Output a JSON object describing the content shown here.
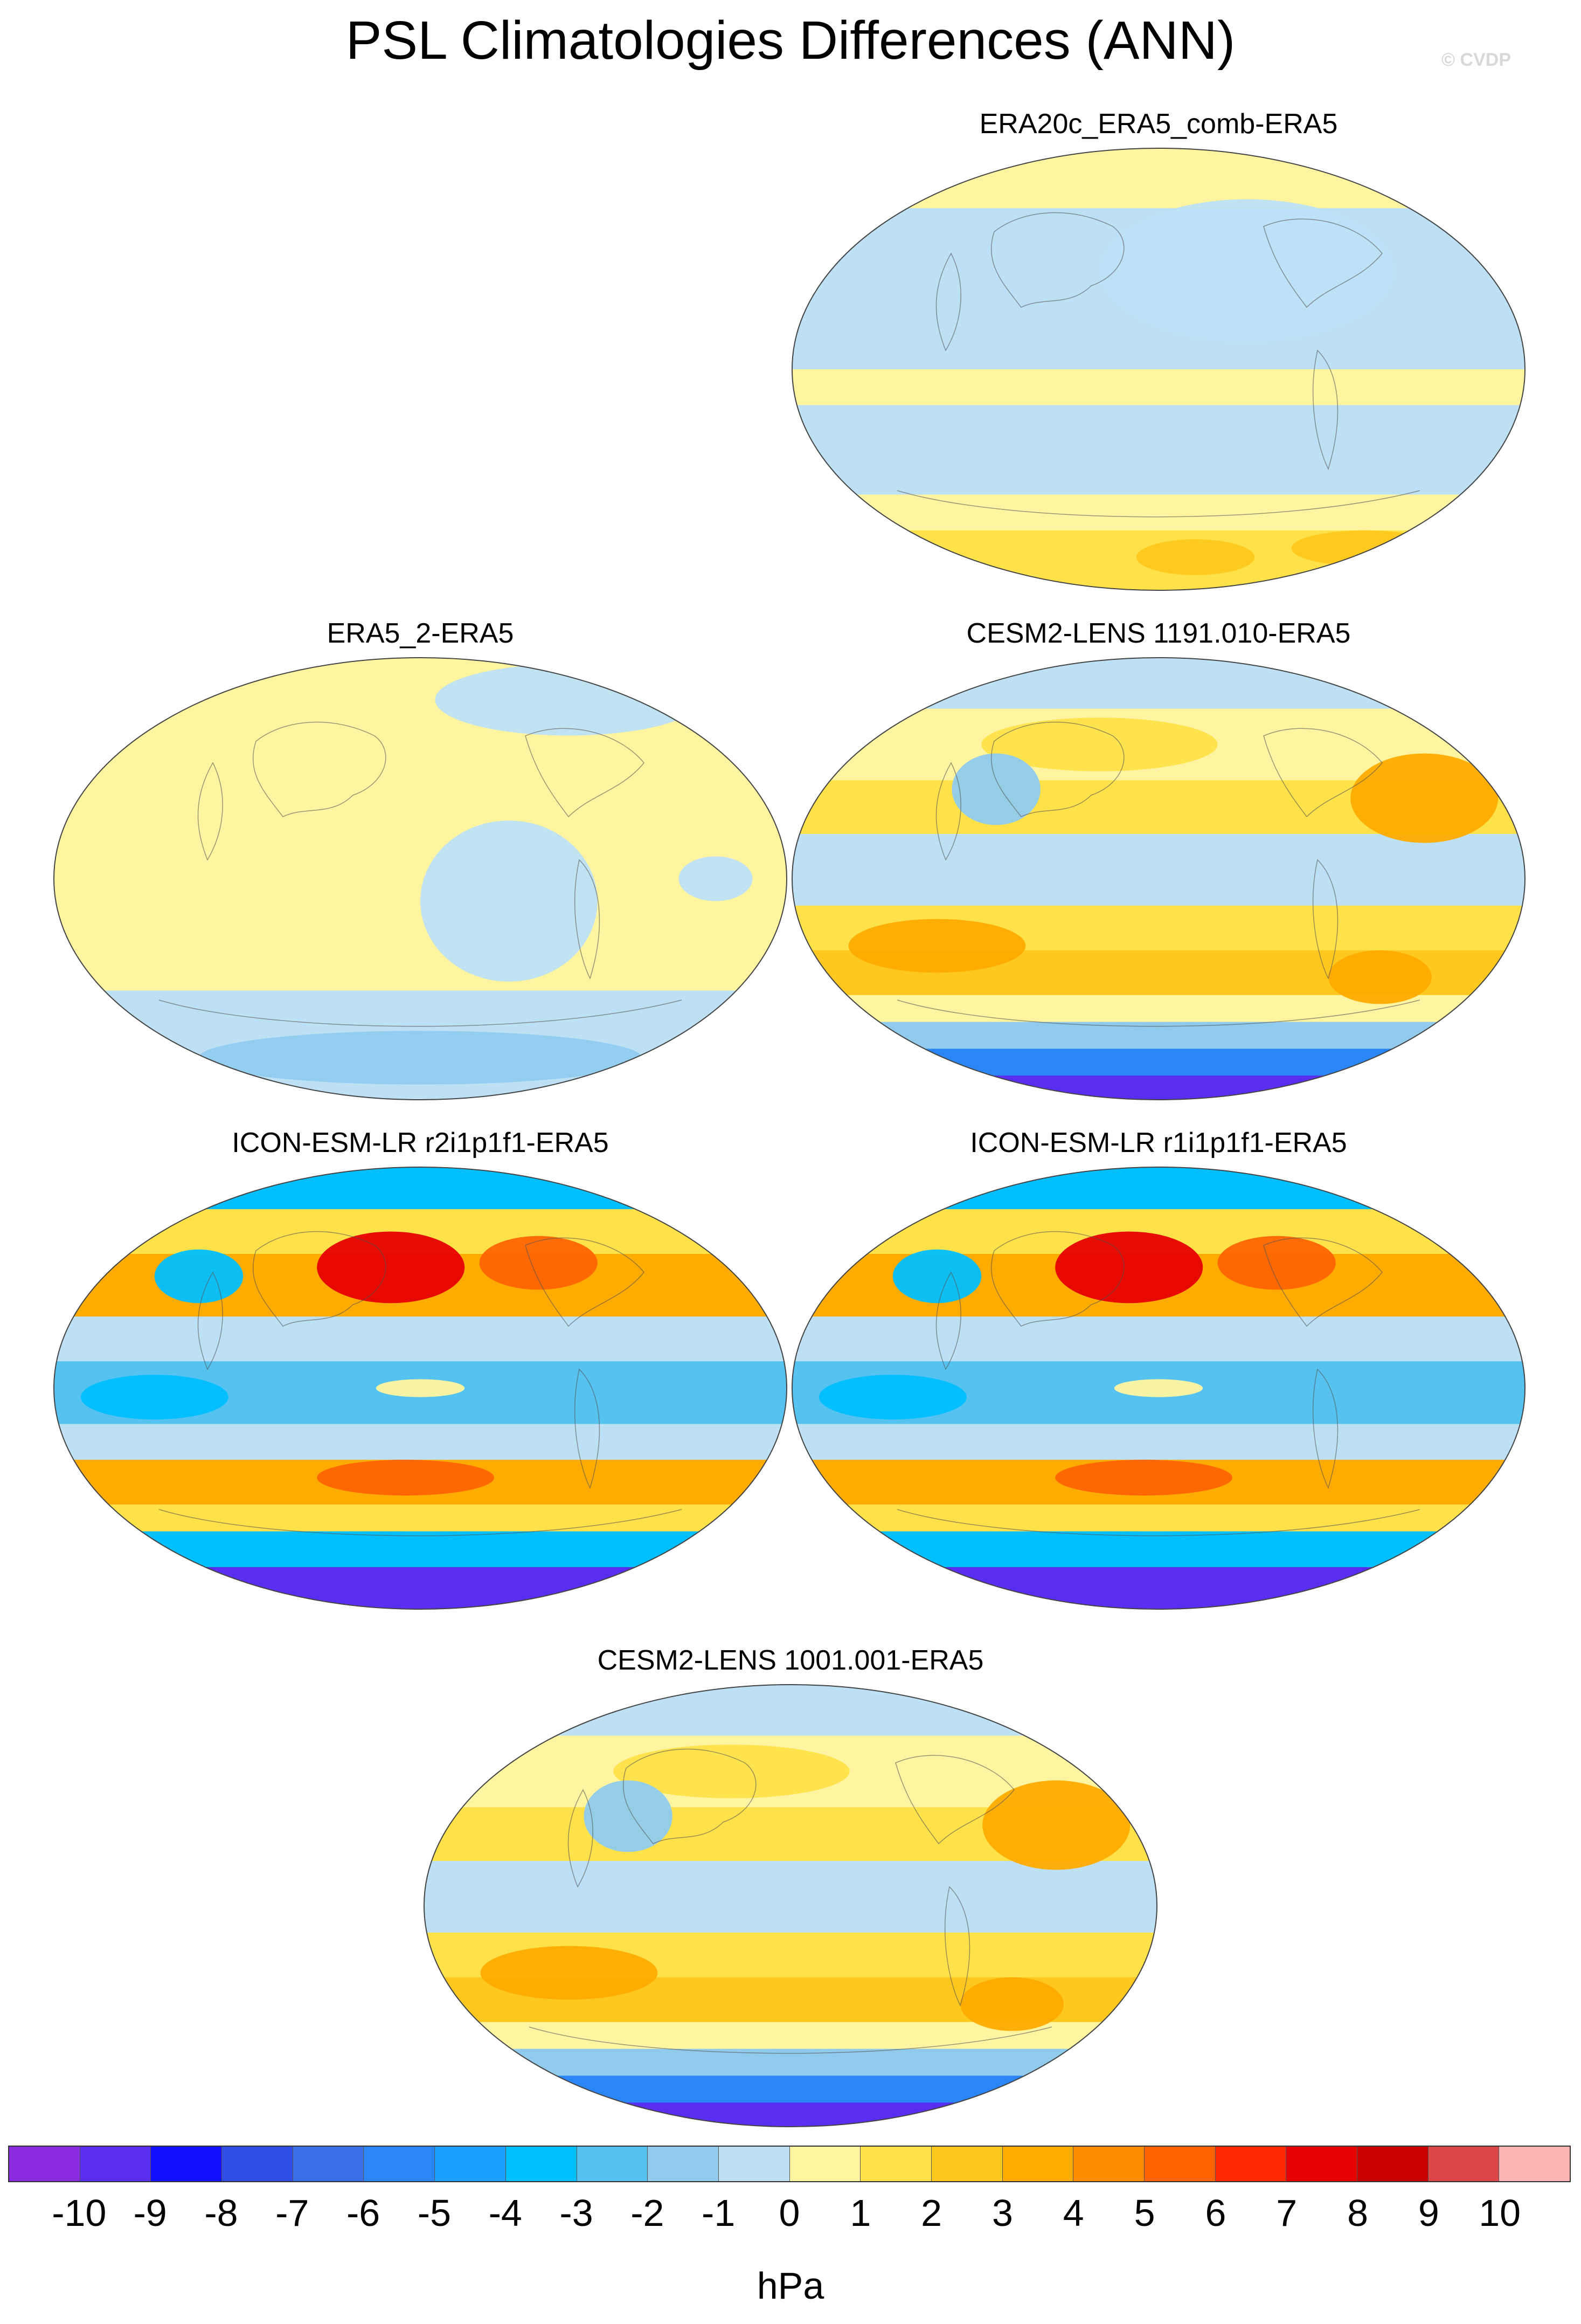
{
  "title": "PSL Climatologies Differences (ANN)",
  "watermark": "© CVDP",
  "panels": [
    {
      "label": "ERA20c_ERA5_comb-ERA5",
      "scheme": "era20c"
    },
    {
      "label": "ERA5_2-ERA5",
      "scheme": "era5_2"
    },
    {
      "label": "CESM2-LENS 1191.010-ERA5",
      "scheme": "cesm"
    },
    {
      "label": "ICON-ESM-LR r2i1p1f1-ERA5",
      "scheme": "icon"
    },
    {
      "label": "ICON-ESM-LR r1i1p1f1-ERA5",
      "scheme": "icon"
    },
    {
      "label": "CESM2-LENS 1001.001-ERA5",
      "scheme": "cesm"
    }
  ],
  "colorbar": {
    "colors": [
      "#8a2be2",
      "#5a2ef0",
      "#1010ff",
      "#2e4ee6",
      "#3a6fe8",
      "#2a86f5",
      "#1aa0ff",
      "#00bfff",
      "#55c2f0",
      "#90cbee",
      "#bde0f5",
      "#fff5a0",
      "#ffe14a",
      "#ffc81e",
      "#ffab00",
      "#ff8c00",
      "#ff6400",
      "#ff2a00",
      "#e60000",
      "#c80000",
      "#dc4646",
      "#ffb4b4"
    ],
    "ticks": [
      "-10",
      "-9",
      "-8",
      "-7",
      "-6",
      "-5",
      "-4",
      "-3",
      "-2",
      "-1",
      "0",
      "1",
      "2",
      "3",
      "4",
      "5",
      "6",
      "7",
      "8",
      "9",
      "10"
    ],
    "unit": "hPa"
  }
}
